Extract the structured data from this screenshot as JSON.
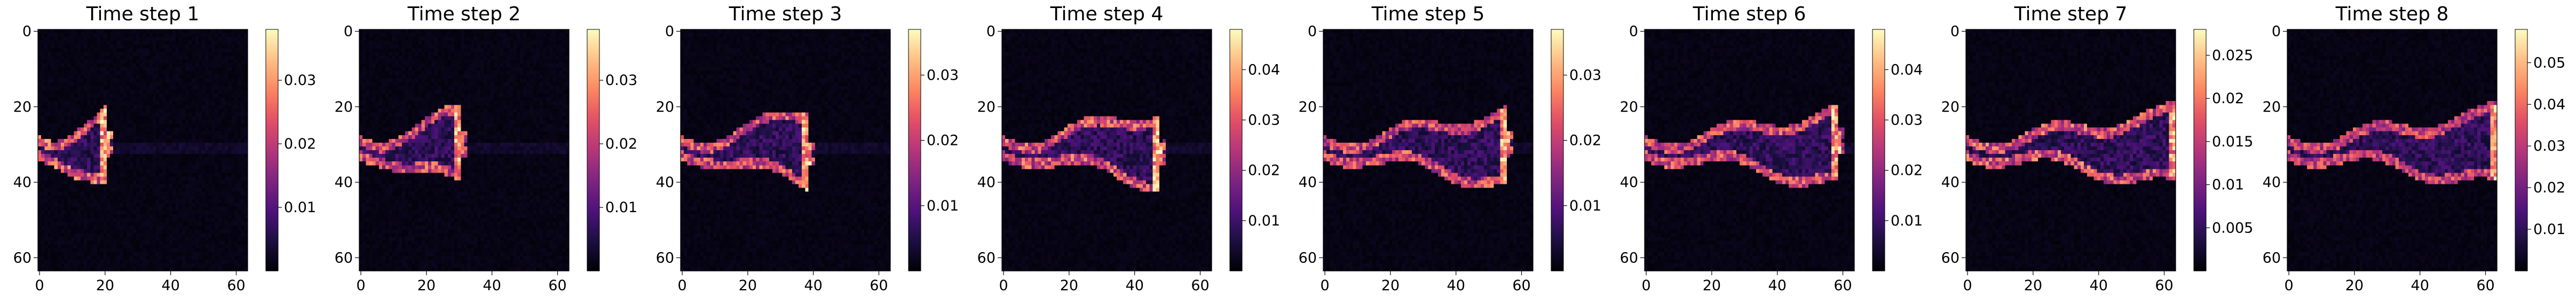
{
  "chart_data": {
    "type": "heatmap",
    "colormap": "magma",
    "image_size": 64,
    "x_ticks": [
      0,
      20,
      40,
      60
    ],
    "y_ticks": [
      0,
      20,
      40,
      60
    ],
    "panels": [
      {
        "title": "Time step 1",
        "x_tick_labels": [
          "0",
          "20",
          "40",
          "60"
        ],
        "y_tick_labels": [
          "0",
          "20",
          "40",
          "60"
        ],
        "colorbar_range": [
          0,
          0.038
        ],
        "colorbar_ticks": [
          0.01,
          0.02,
          0.03
        ],
        "colorbar_tick_labels": [
          "0.01",
          "0.02",
          "0.03"
        ],
        "front_extent": 20,
        "intensity": 0.95
      },
      {
        "title": "Time step 2",
        "x_tick_labels": [
          "0",
          "20",
          "40",
          "60"
        ],
        "y_tick_labels": [
          "0",
          "20",
          "40",
          "60"
        ],
        "colorbar_range": [
          0,
          0.038
        ],
        "colorbar_ticks": [
          0.01,
          0.02,
          0.03
        ],
        "colorbar_tick_labels": [
          "0.01",
          "0.02",
          "0.03"
        ],
        "front_extent": 30,
        "intensity": 0.8
      },
      {
        "title": "Time step 3",
        "x_tick_labels": [
          "0",
          "20",
          "40",
          "60"
        ],
        "y_tick_labels": [
          "0",
          "20",
          "40",
          "60"
        ],
        "colorbar_range": [
          0,
          0.037
        ],
        "colorbar_ticks": [
          0.01,
          0.02,
          0.03
        ],
        "colorbar_tick_labels": [
          "0.01",
          "0.02",
          "0.03"
        ],
        "front_extent": 38,
        "intensity": 0.8
      },
      {
        "title": "Time step 4",
        "x_tick_labels": [
          "0",
          "20",
          "40",
          "60"
        ],
        "y_tick_labels": [
          "0",
          "20",
          "40",
          "60"
        ],
        "colorbar_range": [
          0,
          0.048
        ],
        "colorbar_ticks": [
          0.01,
          0.02,
          0.03,
          0.04
        ],
        "colorbar_tick_labels": [
          "0.01",
          "0.02",
          "0.03",
          "0.04"
        ],
        "front_extent": 47,
        "intensity": 0.85
      },
      {
        "title": "Time step 5",
        "x_tick_labels": [
          "0",
          "20",
          "40",
          "60"
        ],
        "y_tick_labels": [
          "0",
          "20",
          "40",
          "60"
        ],
        "colorbar_range": [
          0,
          0.037
        ],
        "colorbar_ticks": [
          0.01,
          0.02,
          0.03
        ],
        "colorbar_tick_labels": [
          "0.01",
          "0.02",
          "0.03"
        ],
        "front_extent": 55,
        "intensity": 0.8
      },
      {
        "title": "Time step 6",
        "x_tick_labels": [
          "0",
          "20",
          "40",
          "60"
        ],
        "y_tick_labels": [
          "0",
          "20",
          "40",
          "60"
        ],
        "colorbar_range": [
          0,
          0.048
        ],
        "colorbar_ticks": [
          0.01,
          0.02,
          0.03,
          0.04
        ],
        "colorbar_tick_labels": [
          "0.01",
          "0.02",
          "0.03",
          "0.04"
        ],
        "front_extent": 58,
        "intensity": 0.8
      },
      {
        "title": "Time step 7",
        "x_tick_labels": [
          "0",
          "20",
          "40",
          "60"
        ],
        "y_tick_labels": [
          "0",
          "20",
          "40",
          "60"
        ],
        "colorbar_range": [
          0,
          0.028
        ],
        "colorbar_ticks": [
          0.005,
          0.01,
          0.015,
          0.02,
          0.025
        ],
        "colorbar_tick_labels": [
          "0.005",
          "0.01",
          "0.015",
          "0.02",
          "0.025"
        ],
        "front_extent": 63,
        "intensity": 0.85
      },
      {
        "title": "Time step 8",
        "x_tick_labels": [
          "0",
          "20",
          "40",
          "60"
        ],
        "y_tick_labels": [
          "0",
          "20",
          "40",
          "60"
        ],
        "colorbar_range": [
          0,
          0.058
        ],
        "colorbar_ticks": [
          0.01,
          0.02,
          0.03,
          0.04,
          0.05
        ],
        "colorbar_tick_labels": [
          "0.01",
          "0.02",
          "0.03",
          "0.04",
          "0.05"
        ],
        "front_extent": 63,
        "intensity": 0.7
      }
    ]
  }
}
